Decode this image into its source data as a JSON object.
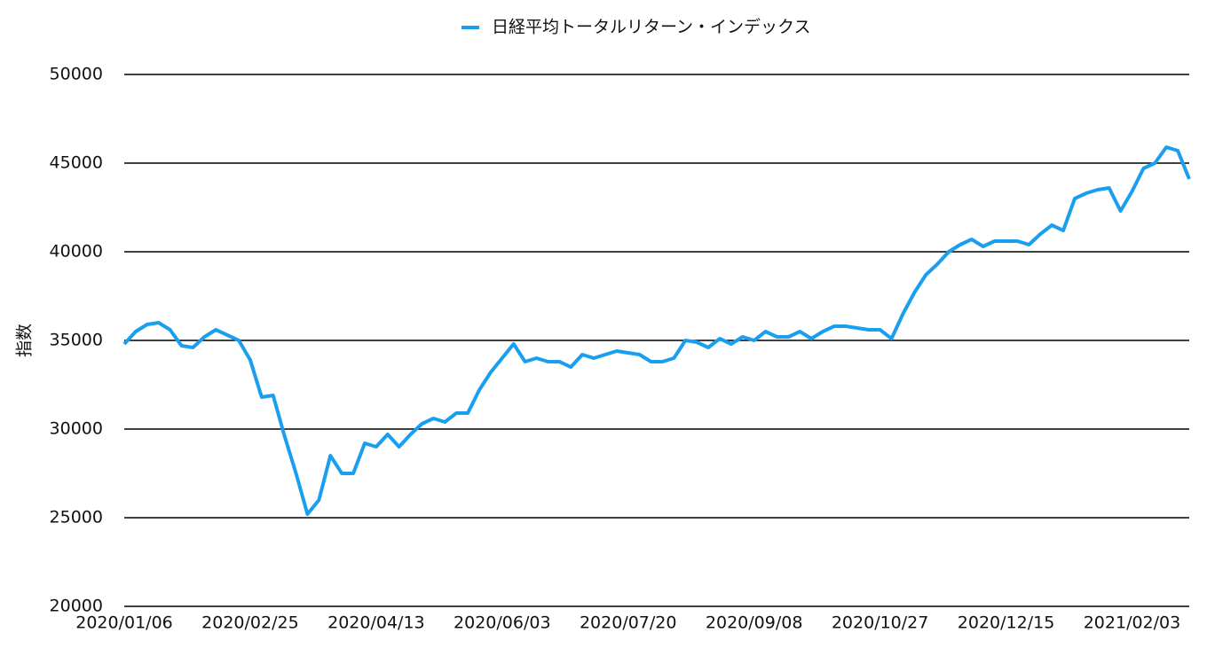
{
  "chart_data": {
    "type": "line",
    "y_label": "指数",
    "categories": [
      "2020/01/06",
      null,
      null,
      null,
      null,
      null,
      null,
      null,
      null,
      null,
      null,
      "2020/02/25",
      null,
      null,
      null,
      null,
      null,
      null,
      null,
      null,
      null,
      null,
      "2020/04/13",
      null,
      null,
      null,
      null,
      null,
      null,
      null,
      null,
      null,
      null,
      "2020/06/03",
      null,
      null,
      null,
      null,
      null,
      null,
      null,
      null,
      null,
      null,
      "2020/07/20",
      null,
      null,
      null,
      null,
      null,
      null,
      null,
      null,
      null,
      null,
      "2020/09/08",
      null,
      null,
      null,
      null,
      null,
      null,
      null,
      null,
      null,
      null,
      "2020/10/27",
      null,
      null,
      null,
      null,
      null,
      null,
      null,
      null,
      null,
      null,
      "2020/12/15",
      null,
      null,
      null,
      null,
      null,
      null,
      null,
      null,
      null,
      null,
      "2021/02/03",
      null,
      null,
      null,
      null,
      null
    ],
    "series": [
      {
        "name": "日経平均トータルリターン・インデックス",
        "color": "#1a9ff0",
        "values": [
          34800,
          35500,
          35900,
          36000,
          35600,
          34700,
          34600,
          35200,
          35600,
          35300,
          35000,
          33900,
          31800,
          31900,
          29600,
          27500,
          25200,
          26000,
          28500,
          27500,
          27500,
          29200,
          29000,
          29700,
          29000,
          29700,
          30300,
          30600,
          30400,
          30900,
          30900,
          32200,
          33200,
          34000,
          34800,
          33800,
          34000,
          33800,
          33800,
          33500,
          34200,
          34000,
          34200,
          34400,
          34300,
          34200,
          33800,
          33800,
          34000,
          35000,
          34900,
          34600,
          35100,
          34800,
          35200,
          35000,
          35500,
          35200,
          35200,
          35500,
          35100,
          35500,
          35800,
          35800,
          35700,
          35600,
          35600,
          35100,
          36500,
          37700,
          38700,
          39300,
          40000,
          40400,
          40700,
          40300,
          40600,
          40600,
          40600,
          40400,
          41000,
          41500,
          41200,
          43000,
          43300,
          43500,
          43600,
          42300,
          43400,
          44700,
          45000,
          45900,
          45700,
          44100
        ]
      }
    ],
    "ylim": [
      20000,
      50000
    ],
    "yticks": [
      20000,
      25000,
      30000,
      35000,
      40000,
      45000,
      50000
    ],
    "grid": true,
    "legend": "top"
  }
}
